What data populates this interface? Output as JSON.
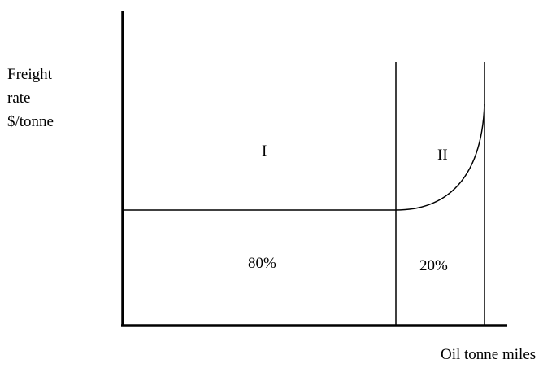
{
  "y_axis_label_lines": [
    "Freight",
    "rate",
    "$/tonne"
  ],
  "x_axis_label": "Oil tonne miles",
  "regions": [
    {
      "id": "I",
      "label": "I",
      "share": "80%"
    },
    {
      "id": "II",
      "label": "II",
      "share": "20%"
    }
  ]
}
